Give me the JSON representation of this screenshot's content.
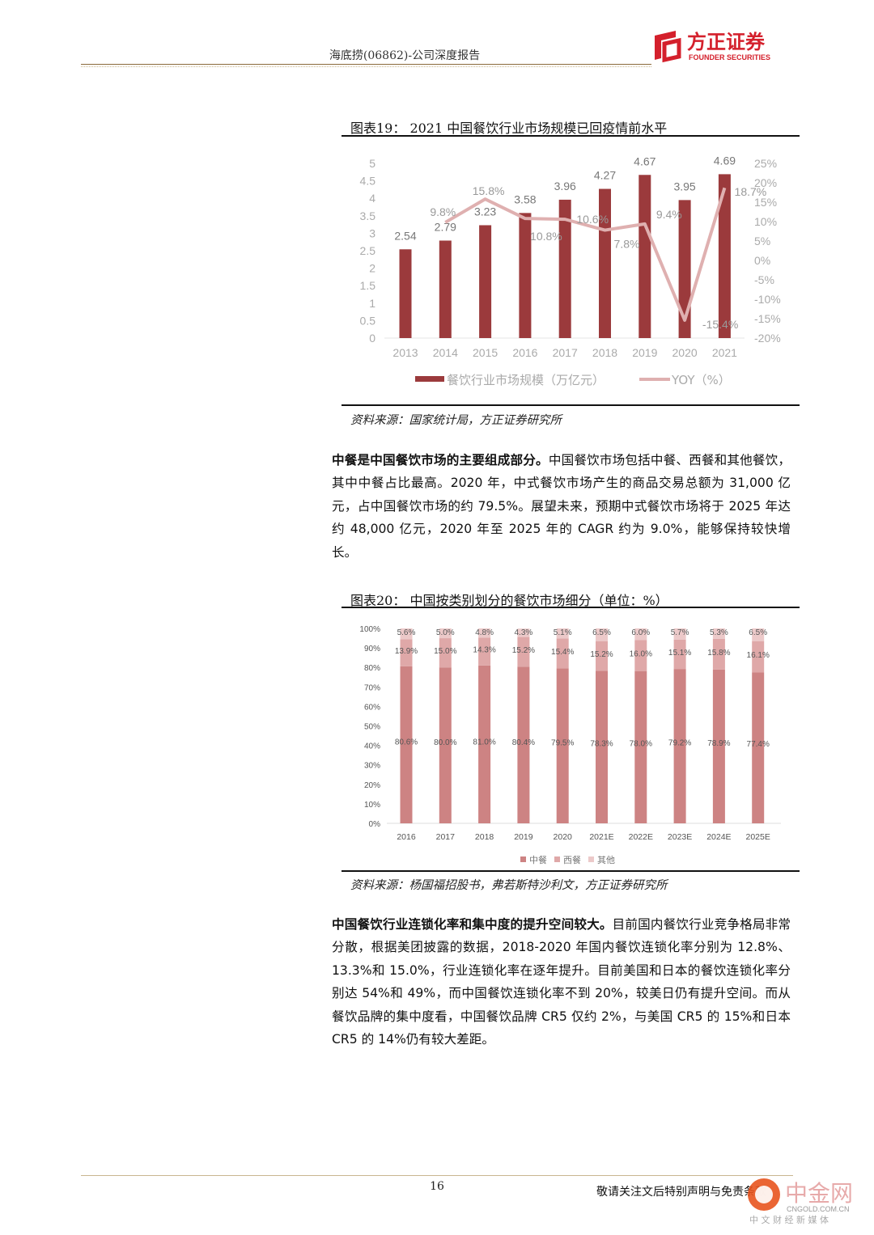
{
  "header": {
    "title": "海底捞(06862)-公司深度报告",
    "logo_cn": "方正证券",
    "logo_en": "FOUNDER SECURITIES"
  },
  "figure19": {
    "caption": "图表19：  2021 中国餐饮行业市场规模已回疫情前水平",
    "source": "资料来源：国家统计局，方正证券研究所",
    "chart_data": {
      "type": "bar+line",
      "categories": [
        "2013",
        "2014",
        "2015",
        "2016",
        "2017",
        "2018",
        "2019",
        "2020",
        "2021"
      ],
      "series": [
        {
          "name": "餐饮行业市场规模（万亿元）",
          "type": "bar",
          "axis": "left",
          "color": "#9b3a3c",
          "values": [
            2.54,
            2.79,
            3.23,
            3.58,
            3.96,
            4.27,
            4.67,
            3.95,
            4.69
          ],
          "labels": [
            "2.54",
            "2.79",
            "3.23",
            "3.58",
            "3.96",
            "4.27",
            "4.67",
            "3.95",
            "4.69"
          ]
        },
        {
          "name": "YOY（%）",
          "type": "line",
          "axis": "right",
          "color": "#dfb0b0",
          "values": [
            null,
            9.8,
            15.8,
            10.8,
            10.6,
            7.8,
            9.4,
            -15.4,
            18.7
          ],
          "labels": [
            "",
            "9.8%",
            "15.8%",
            "10.8%",
            "10.6%",
            "7.8%",
            "9.4%",
            "-15.4%",
            "18.7%"
          ]
        }
      ],
      "y_left": {
        "range": [
          0,
          5
        ],
        "ticks": [
          "0",
          "0.5",
          "1",
          "1.5",
          "2",
          "2.5",
          "3",
          "3.5",
          "4",
          "4.5",
          "5"
        ]
      },
      "y_right": {
        "range": [
          -20,
          25
        ],
        "ticks": [
          "-20%",
          "-15%",
          "-10%",
          "-5%",
          "0%",
          "5%",
          "10%",
          "15%",
          "20%",
          "25%"
        ]
      },
      "legend": "bottom",
      "grid": false
    }
  },
  "paragraph1": {
    "bold": "中餐是中国餐饮市场的主要组成部分。",
    "text": "中国餐饮市场包括中餐、西餐和其他餐饮，其中中餐占比最高。2020 年，中式餐饮市场产生的商品交易总额为 31,000 亿元，占中国餐饮市场的约 79.5%。展望未来，预期中式餐饮市场将于 2025 年达约 48,000 亿元，2020 年至 2025 年的 CAGR 约为 9.0%，能够保持较快增长。"
  },
  "figure20": {
    "caption": "图表20：  中国按类别划分的餐饮市场细分（单位：%）",
    "source": "资料来源：杨国福招股书，弗若斯特沙利文，方正证券研究所",
    "chart_data": {
      "type": "stacked-bar",
      "categories": [
        "2016",
        "2017",
        "2018",
        "2019",
        "2020",
        "2021E",
        "2022E",
        "2023E",
        "2024E",
        "2025E"
      ],
      "series": [
        {
          "name": "中餐",
          "color": "#cd8383",
          "values": [
            80.6,
            80.0,
            81.0,
            80.4,
            79.5,
            78.3,
            78.0,
            79.2,
            78.9,
            77.4
          ]
        },
        {
          "name": "西餐",
          "color": "#dfa8a8",
          "values": [
            13.9,
            15.0,
            14.3,
            15.2,
            15.4,
            15.2,
            16.0,
            15.1,
            15.8,
            16.1
          ]
        },
        {
          "name": "其他",
          "color": "#ecc9c9",
          "values": [
            5.6,
            5.0,
            4.8,
            4.3,
            5.1,
            6.5,
            6.0,
            5.7,
            5.3,
            6.5
          ]
        }
      ],
      "y": {
        "range": [
          0,
          100
        ],
        "ticks": [
          "0%",
          "10%",
          "20%",
          "30%",
          "40%",
          "50%",
          "60%",
          "70%",
          "80%",
          "90%",
          "100%"
        ]
      },
      "legend": "bottom",
      "grid": false
    }
  },
  "paragraph2": {
    "bold": "中国餐饮行业连锁化率和集中度的提升空间较大。",
    "text": "目前国内餐饮行业竞争格局非常分散，根据美团披露的数据，2018-2020 年国内餐饮连锁化率分别为 12.8%、13.3%和 15.0%，行业连锁化率在逐年提升。目前美国和日本的餐饮连锁化率分别达 54%和 49%，而中国餐饮连锁化率不到 20%，较美日仍有提升空间。而从餐饮品牌的集中度看，中国餐饮品牌 CR5 仅约 2%，与美国 CR5 的 15%和日本 CR5 的 14%仍有较大差距。"
  },
  "footer": {
    "page": "16",
    "note": "敬请关注文后特别声明与免责条款",
    "watermark_cn": "中金网",
    "watermark_en": "CNGOLD.COM.CN",
    "watermark_sub": "中 文 财 经 新 媒 体"
  }
}
